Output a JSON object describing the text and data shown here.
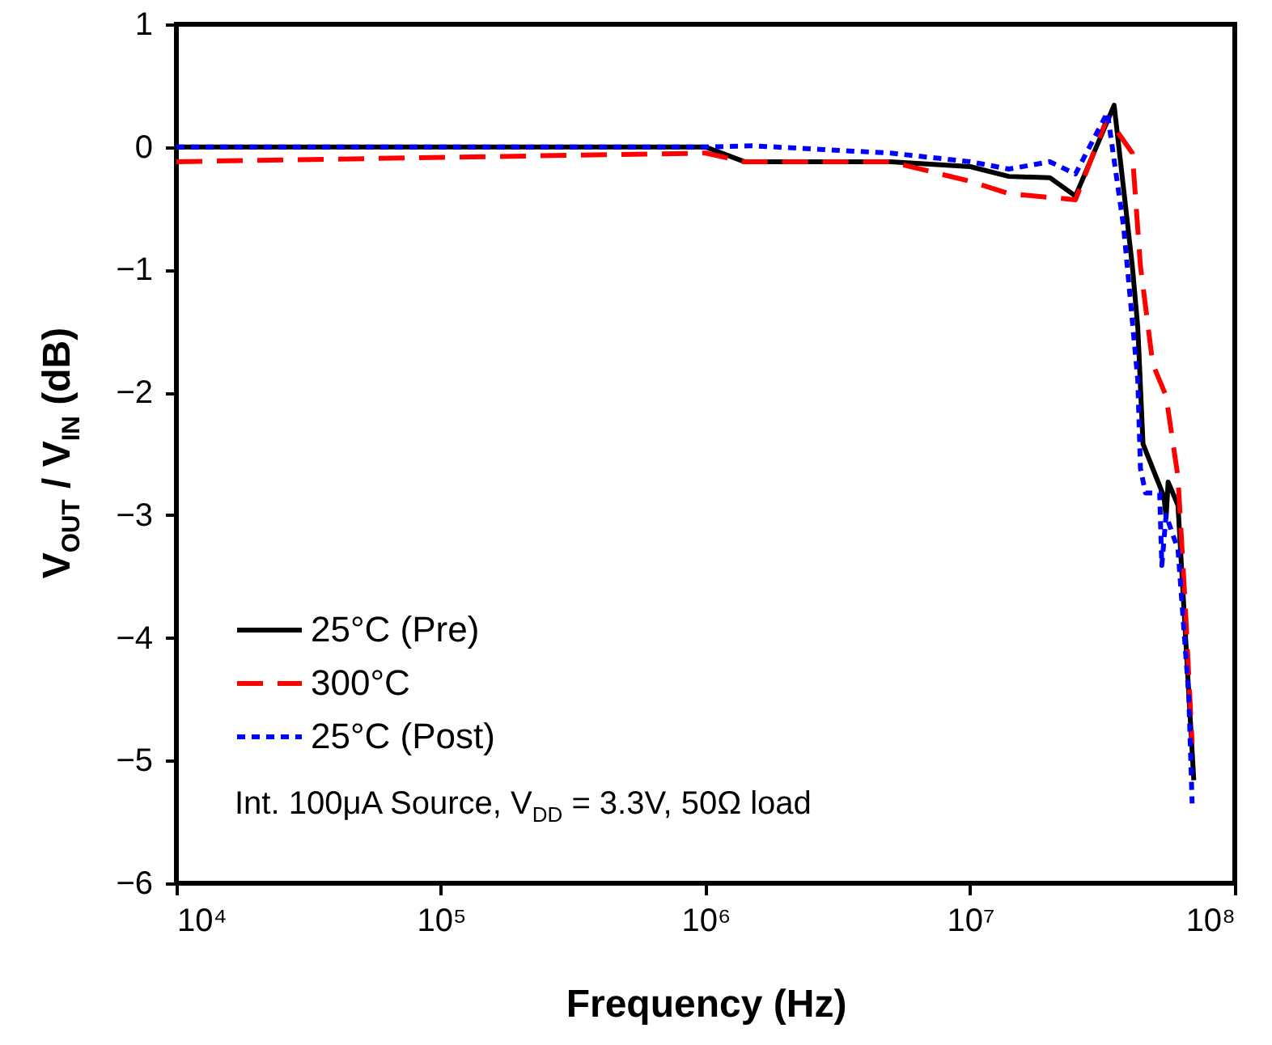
{
  "chart_data": {
    "type": "line",
    "xlabel": "Frequency (Hz)",
    "ylabel": "V$_{OUT}$ / V$_{IN}$ (dB)",
    "log": "x",
    "xlim": [
      10000,
      100000000
    ],
    "xticks": [
      {
        "value": 10000,
        "label": "10⁴"
      },
      {
        "value": 100000,
        "label": "10⁵"
      },
      {
        "value": 1000000,
        "label": "10⁶"
      },
      {
        "value": 10000000,
        "label": "10⁷"
      },
      {
        "value": 100000000,
        "label": "10⁸"
      }
    ],
    "ylim": [
      -6,
      1
    ],
    "yticks": [
      -6,
      -5,
      -4,
      -3,
      -2,
      -1,
      0,
      1
    ],
    "grid": false,
    "legend": "bottom left",
    "annotations": [
      "Int. 100μA Source, V$_{DD}$ = 3.3V, 50Ω load"
    ],
    "series": [
      {
        "name": "25°C (Pre)",
        "color": "#000000",
        "line_style": "solid",
        "x": [
          10000,
          1000000,
          1400000,
          5000000,
          10000000,
          14000000,
          20000000,
          25000000,
          35000000,
          41000000,
          43000000,
          45000000,
          54000000,
          55000000,
          56000000,
          61000000,
          70000000
        ],
        "values": [
          0,
          0,
          -0.12,
          -0.12,
          -0.16,
          -0.24,
          -0.25,
          -0.4,
          0.34,
          -0.97,
          -1.47,
          -2.42,
          -2.85,
          -3.02,
          -2.73,
          -2.92,
          -5.16
        ]
      },
      {
        "name": "300°C",
        "color": "#ff0000",
        "line_style": "dashed",
        "x": [
          10000,
          1000000,
          1400000,
          5000000,
          10000000,
          14000000,
          25000000,
          33000000,
          41000000,
          44000000,
          49000000,
          55000000,
          61000000,
          65000000,
          69000000
        ],
        "values": [
          -0.12,
          -0.05,
          -0.12,
          -0.12,
          -0.28,
          -0.38,
          -0.43,
          0.24,
          -0.05,
          -0.97,
          -1.77,
          -2.03,
          -2.69,
          -3.74,
          -4.86
        ]
      },
      {
        "name": "25°C (Post)",
        "color": "#0000ff",
        "line_style": "dotted",
        "x": [
          10000,
          1000000,
          1500000,
          5000000,
          10000000,
          14000000,
          20000000,
          25000000,
          33000000,
          38000000,
          43000000,
          44000000,
          46000000,
          52000000,
          53000000,
          55000000,
          61000000,
          67000000,
          69000000
        ],
        "values": [
          0,
          0,
          0.01,
          -0.05,
          -0.12,
          -0.18,
          -0.12,
          -0.22,
          0.28,
          -0.65,
          -1.9,
          -2.62,
          -2.82,
          -2.82,
          -3.41,
          -3.0,
          -3.28,
          -4.47,
          -5.35
        ]
      }
    ]
  }
}
